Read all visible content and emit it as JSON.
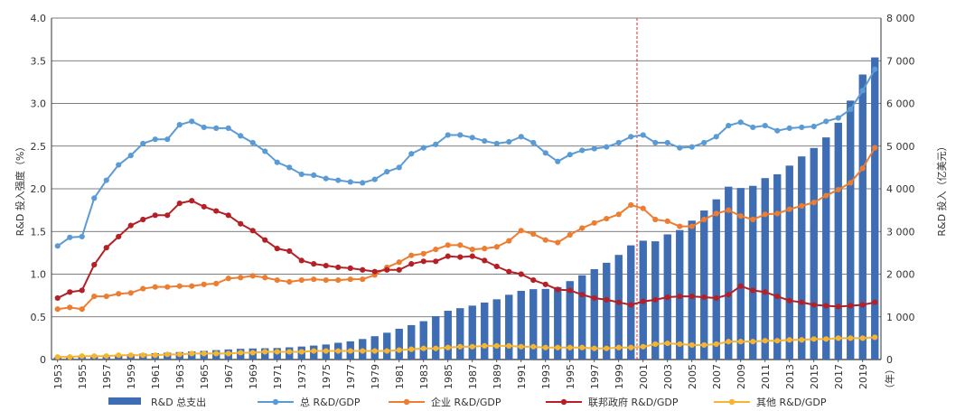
{
  "chart_data": {
    "type": "bar+line",
    "y_left": {
      "label": "R&D 投入强度（%）",
      "ylim": [
        0,
        4.0
      ],
      "ticks": [
        "0",
        "0.5",
        "1.0",
        "1.5",
        "2.0",
        "2.5",
        "3.0",
        "3.5",
        "4.0"
      ]
    },
    "y_right": {
      "label": "R&D 投入（亿美元）",
      "ylim": [
        0,
        8000
      ],
      "ticks": [
        "0",
        "1 000",
        "2 000",
        "3 000",
        "4 000",
        "5 000",
        "6 000",
        "7 000",
        "8 000"
      ]
    },
    "x_unit": "（年）",
    "x": [
      1953,
      1954,
      1955,
      1956,
      1957,
      1958,
      1959,
      1960,
      1961,
      1962,
      1963,
      1964,
      1965,
      1966,
      1967,
      1968,
      1969,
      1970,
      1971,
      1972,
      1973,
      1974,
      1975,
      1976,
      1977,
      1978,
      1979,
      1980,
      1981,
      1982,
      1983,
      1984,
      1985,
      1986,
      1987,
      1988,
      1989,
      1990,
      1991,
      1992,
      1993,
      1994,
      1995,
      1996,
      1997,
      1998,
      1999,
      2000,
      2001,
      2002,
      2003,
      2004,
      2005,
      2006,
      2007,
      2008,
      2009,
      2010,
      2011,
      2012,
      2013,
      2014,
      2015,
      2016,
      2017,
      2018,
      2019,
      2020
    ],
    "x_tick_labels": [
      "1953",
      "1955",
      "1957",
      "1959",
      "1961",
      "1963",
      "1965",
      "1967",
      "1969",
      "1971",
      "1973",
      "1975",
      "1977",
      "1979",
      "1981",
      "1983",
      "1985",
      "1987",
      "1989",
      "1991",
      "1993",
      "1995",
      "1997",
      "1999",
      "2001",
      "2003",
      "2005",
      "2007",
      "2009",
      "2011",
      "2013",
      "2015",
      "2017",
      "2019"
    ],
    "vline_x": 2000.5,
    "legend_position": "bottom",
    "series": [
      {
        "name": "R&D 总支出",
        "kind": "bar",
        "axis": "right",
        "color": "#3f6db4",
        "values": [
          51,
          57,
          63,
          84,
          98,
          109,
          125,
          138,
          148,
          160,
          175,
          190,
          203,
          220,
          236,
          251,
          259,
          264,
          269,
          285,
          304,
          327,
          352,
          392,
          426,
          480,
          546,
          628,
          721,
          806,
          898,
          1016,
          1142,
          1203,
          1262,
          1335,
          1411,
          1517,
          1609,
          1648,
          1654,
          1697,
          1837,
          1973,
          2117,
          2267,
          2451,
          2675,
          2784,
          2770,
          2932,
          3033,
          3254,
          3491,
          3753,
          4049,
          4019,
          4069,
          4250,
          4340,
          4543,
          4758,
          4956,
          5204,
          5548,
          6066,
          6677,
          7078
        ]
      },
      {
        "name": "总 R&D/GDP",
        "kind": "line",
        "axis": "left",
        "color": "#5b9bd5",
        "values": [
          1.33,
          1.43,
          1.44,
          1.89,
          2.1,
          2.28,
          2.39,
          2.53,
          2.58,
          2.58,
          2.75,
          2.79,
          2.72,
          2.71,
          2.71,
          2.62,
          2.54,
          2.44,
          2.31,
          2.25,
          2.17,
          2.16,
          2.12,
          2.1,
          2.08,
          2.07,
          2.11,
          2.2,
          2.25,
          2.41,
          2.48,
          2.52,
          2.63,
          2.63,
          2.6,
          2.56,
          2.53,
          2.55,
          2.61,
          2.54,
          2.42,
          2.32,
          2.4,
          2.45,
          2.47,
          2.49,
          2.54,
          2.61,
          2.63,
          2.54,
          2.54,
          2.48,
          2.49,
          2.54,
          2.61,
          2.74,
          2.78,
          2.72,
          2.74,
          2.68,
          2.71,
          2.72,
          2.73,
          2.79,
          2.83,
          2.93,
          3.15,
          3.4
        ]
      },
      {
        "name": "企业 R&D/GDP",
        "kind": "line",
        "axis": "left",
        "color": "#ed7d31",
        "values": [
          0.59,
          0.61,
          0.59,
          0.74,
          0.74,
          0.77,
          0.78,
          0.83,
          0.85,
          0.85,
          0.86,
          0.86,
          0.88,
          0.89,
          0.95,
          0.96,
          0.98,
          0.96,
          0.93,
          0.91,
          0.93,
          0.94,
          0.93,
          0.93,
          0.94,
          0.94,
          0.99,
          1.08,
          1.14,
          1.22,
          1.24,
          1.29,
          1.34,
          1.34,
          1.29,
          1.3,
          1.32,
          1.39,
          1.51,
          1.47,
          1.4,
          1.37,
          1.46,
          1.54,
          1.6,
          1.65,
          1.7,
          1.81,
          1.77,
          1.64,
          1.62,
          1.56,
          1.56,
          1.64,
          1.71,
          1.75,
          1.68,
          1.64,
          1.7,
          1.71,
          1.76,
          1.8,
          1.84,
          1.92,
          1.99,
          2.07,
          2.24,
          2.48
        ]
      },
      {
        "name": "联邦政府 R&D/GDP",
        "kind": "line",
        "axis": "left",
        "color": "#b42025",
        "values": [
          0.72,
          0.79,
          0.81,
          1.11,
          1.31,
          1.44,
          1.57,
          1.64,
          1.69,
          1.69,
          1.83,
          1.86,
          1.79,
          1.74,
          1.69,
          1.59,
          1.51,
          1.4,
          1.3,
          1.27,
          1.16,
          1.12,
          1.1,
          1.08,
          1.07,
          1.05,
          1.03,
          1.05,
          1.05,
          1.12,
          1.15,
          1.15,
          1.21,
          1.2,
          1.21,
          1.16,
          1.09,
          1.03,
          1.0,
          0.93,
          0.88,
          0.82,
          0.81,
          0.76,
          0.72,
          0.7,
          0.67,
          0.64,
          0.68,
          0.7,
          0.73,
          0.74,
          0.74,
          0.73,
          0.72,
          0.76,
          0.86,
          0.81,
          0.79,
          0.74,
          0.69,
          0.67,
          0.64,
          0.63,
          0.62,
          0.63,
          0.64,
          0.67
        ]
      },
      {
        "name": "其他 R&D/GDP",
        "kind": "line",
        "axis": "left",
        "color": "#f5b431",
        "values": [
          0.03,
          0.03,
          0.04,
          0.04,
          0.04,
          0.05,
          0.05,
          0.05,
          0.05,
          0.06,
          0.06,
          0.07,
          0.07,
          0.07,
          0.07,
          0.08,
          0.08,
          0.09,
          0.09,
          0.09,
          0.09,
          0.1,
          0.1,
          0.1,
          0.1,
          0.1,
          0.1,
          0.1,
          0.11,
          0.12,
          0.13,
          0.13,
          0.14,
          0.15,
          0.15,
          0.16,
          0.16,
          0.16,
          0.15,
          0.15,
          0.14,
          0.14,
          0.14,
          0.14,
          0.13,
          0.13,
          0.14,
          0.14,
          0.15,
          0.18,
          0.19,
          0.18,
          0.17,
          0.17,
          0.18,
          0.21,
          0.21,
          0.21,
          0.22,
          0.22,
          0.23,
          0.23,
          0.24,
          0.24,
          0.25,
          0.25,
          0.25,
          0.26
        ]
      }
    ]
  }
}
